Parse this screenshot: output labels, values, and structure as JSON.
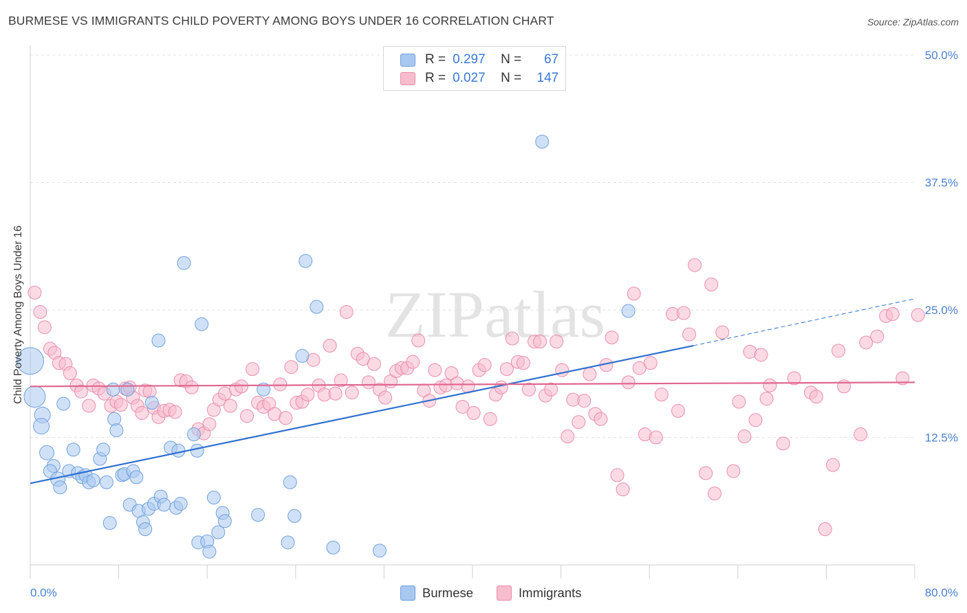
{
  "title": "BURMESE VS IMMIGRANTS CHILD POVERTY AMONG BOYS UNDER 16 CORRELATION CHART",
  "source": "Source: ZipAtlas.com",
  "watermark": "ZIPatlas",
  "legend": {
    "r_label": "R =",
    "n_label": "N =",
    "rows": [
      {
        "name": "Burmese",
        "r": "0.297",
        "n": "67",
        "color": "#a9c8f0",
        "edge": "#6fa0de"
      },
      {
        "name": "Immigrants",
        "r": "0.027",
        "n": "147",
        "color": "#f7bccd",
        "edge": "#ea8eab"
      }
    ]
  },
  "chart_data": {
    "type": "scatter",
    "title": "BURMESE VS IMMIGRANTS CHILD POVERTY AMONG BOYS UNDER 16 CORRELATION CHART",
    "xlabel": "",
    "ylabel": "Child Poverty Among Boys Under 16",
    "xlim": [
      0,
      80
    ],
    "ylim": [
      0,
      50
    ],
    "x_tick_labels": [
      "0.0%",
      "80.0%"
    ],
    "y_ticks": [
      12.5,
      25.0,
      37.5,
      50.0
    ],
    "y_tick_labels": [
      "12.5%",
      "25.0%",
      "37.5%",
      "50.0%"
    ],
    "grid": true,
    "legend_position": "top-center",
    "series": [
      {
        "name": "Burmese",
        "color": "#6fa0de",
        "trend": {
          "x": [
            0,
            60
          ],
          "y": [
            8.0,
            21.5
          ],
          "dashed_to": [
            80,
            26.1
          ],
          "color": "#2e6fd0"
        },
        "points": [
          [
            0,
            20,
            18
          ],
          [
            0.4,
            16.5,
            14
          ],
          [
            1.1,
            14.7,
            10
          ],
          [
            1.0,
            13.6,
            10
          ],
          [
            1.5,
            11.0,
            9
          ],
          [
            2.1,
            9.7,
            8
          ],
          [
            1.8,
            9.2,
            8
          ],
          [
            2.5,
            8.4,
            9
          ],
          [
            2.7,
            7.6,
            8
          ],
          [
            3.0,
            15.8,
            8
          ],
          [
            3.5,
            9.2,
            8
          ],
          [
            3.9,
            11.3,
            8
          ],
          [
            4.3,
            9.0,
            8
          ],
          [
            4.7,
            8.6,
            8
          ],
          [
            5.0,
            8.8,
            8
          ],
          [
            5.3,
            8.1,
            8
          ],
          [
            5.7,
            8.3,
            8
          ],
          [
            6.3,
            10.4,
            8
          ],
          [
            6.6,
            11.3,
            8
          ],
          [
            6.9,
            8.1,
            8
          ],
          [
            7.2,
            4.1,
            8
          ],
          [
            7.5,
            17.2,
            8
          ],
          [
            7.6,
            14.3,
            8
          ],
          [
            7.8,
            13.2,
            8
          ],
          [
            8.3,
            8.8,
            8
          ],
          [
            8.5,
            8.9,
            8
          ],
          [
            8.8,
            17.2,
            8
          ],
          [
            9.0,
            5.9,
            8
          ],
          [
            9.3,
            9.2,
            8
          ],
          [
            9.6,
            8.6,
            8
          ],
          [
            9.8,
            5.3,
            8
          ],
          [
            10.2,
            4.2,
            8
          ],
          [
            10.4,
            3.5,
            8
          ],
          [
            10.7,
            5.5,
            8
          ],
          [
            11.0,
            15.9,
            8
          ],
          [
            11.2,
            6.0,
            8
          ],
          [
            11.6,
            22.0,
            8
          ],
          [
            11.8,
            6.7,
            8
          ],
          [
            12.1,
            5.9,
            8
          ],
          [
            12.7,
            11.5,
            8
          ],
          [
            13.2,
            5.6,
            8
          ],
          [
            13.4,
            11.2,
            8
          ],
          [
            13.6,
            6.0,
            8
          ],
          [
            13.9,
            29.6,
            8
          ],
          [
            14.8,
            12.8,
            8
          ],
          [
            15.1,
            11.2,
            8
          ],
          [
            15.5,
            23.6,
            8
          ],
          [
            15.2,
            2.2,
            8
          ],
          [
            16.0,
            2.3,
            8
          ],
          [
            16.2,
            1.3,
            8
          ],
          [
            16.6,
            6.6,
            8
          ],
          [
            17.0,
            3.2,
            8
          ],
          [
            17.4,
            5.1,
            8
          ],
          [
            17.6,
            4.3,
            8
          ],
          [
            20.6,
            4.9,
            8
          ],
          [
            21.1,
            17.2,
            8
          ],
          [
            23.3,
            2.2,
            8
          ],
          [
            23.5,
            8.1,
            8
          ],
          [
            23.9,
            4.8,
            8
          ],
          [
            24.6,
            20.5,
            8
          ],
          [
            24.9,
            29.8,
            8
          ],
          [
            25.9,
            25.3,
            8
          ],
          [
            27.4,
            1.7,
            8
          ],
          [
            31.6,
            1.4,
            8
          ],
          [
            46.3,
            41.5,
            8
          ],
          [
            54.1,
            24.9,
            8
          ]
        ]
      },
      {
        "name": "Immigrants",
        "color": "#ea8eab",
        "trend": {
          "x": [
            0,
            80
          ],
          "y": [
            17.5,
            17.9
          ],
          "color": "#e0668e"
        },
        "points": [
          [
            0.4,
            26.7,
            8
          ],
          [
            0.9,
            24.8,
            8
          ],
          [
            1.3,
            23.3,
            8
          ],
          [
            1.8,
            21.2,
            8
          ],
          [
            2.2,
            20.8,
            8
          ],
          [
            2.6,
            19.8,
            8
          ],
          [
            3.2,
            19.7,
            8
          ],
          [
            3.6,
            18.8,
            8
          ],
          [
            4.2,
            17.6,
            8
          ],
          [
            4.6,
            17.0,
            8
          ],
          [
            5.3,
            15.6,
            8
          ],
          [
            5.7,
            17.6,
            8
          ],
          [
            6.2,
            17.3,
            8
          ],
          [
            6.7,
            16.8,
            8
          ],
          [
            7.3,
            15.6,
            8
          ],
          [
            7.8,
            16.0,
            8
          ],
          [
            8.2,
            15.7,
            8
          ],
          [
            8.6,
            17.3,
            8
          ],
          [
            9.0,
            17.4,
            8
          ],
          [
            9.3,
            16.4,
            8
          ],
          [
            9.7,
            15.6,
            8
          ],
          [
            10.1,
            14.9,
            8
          ],
          [
            10.4,
            17.1,
            8
          ],
          [
            10.8,
            17.0,
            8
          ],
          [
            11.2,
            15.4,
            8
          ],
          [
            11.6,
            14.5,
            8
          ],
          [
            12.1,
            15.1,
            8
          ],
          [
            12.6,
            15.2,
            8
          ],
          [
            13.1,
            15.0,
            8
          ],
          [
            13.6,
            18.1,
            8
          ],
          [
            14.1,
            18.0,
            8
          ],
          [
            14.6,
            17.4,
            8
          ],
          [
            15.2,
            13.3,
            8
          ],
          [
            15.7,
            12.9,
            8
          ],
          [
            16.2,
            13.8,
            8
          ],
          [
            16.6,
            15.2,
            8
          ],
          [
            17.1,
            16.2,
            8
          ],
          [
            17.6,
            16.8,
            8
          ],
          [
            18.1,
            15.6,
            8
          ],
          [
            18.6,
            17.2,
            8
          ],
          [
            19.1,
            17.5,
            8
          ],
          [
            19.6,
            14.6,
            8
          ],
          [
            20.1,
            19.2,
            8
          ],
          [
            20.6,
            15.9,
            8
          ],
          [
            21.1,
            15.5,
            8
          ],
          [
            21.6,
            15.8,
            8
          ],
          [
            22.1,
            14.8,
            8
          ],
          [
            22.6,
            17.7,
            8
          ],
          [
            23.1,
            14.4,
            8
          ],
          [
            23.6,
            19.4,
            8
          ],
          [
            24.1,
            15.9,
            8
          ],
          [
            24.6,
            16.0,
            8
          ],
          [
            25.1,
            16.7,
            8
          ],
          [
            25.6,
            20.1,
            8
          ],
          [
            26.1,
            17.6,
            8
          ],
          [
            26.6,
            16.7,
            8
          ],
          [
            27.1,
            21.5,
            8
          ],
          [
            27.6,
            16.8,
            8
          ],
          [
            28.1,
            18.1,
            8
          ],
          [
            28.6,
            24.8,
            8
          ],
          [
            29.1,
            16.9,
            8
          ],
          [
            29.6,
            20.7,
            8
          ],
          [
            30.1,
            20.2,
            8
          ],
          [
            30.6,
            17.9,
            8
          ],
          [
            31.1,
            19.7,
            8
          ],
          [
            31.6,
            17.2,
            8
          ],
          [
            32.1,
            16.4,
            8
          ],
          [
            32.6,
            18.0,
            8
          ],
          [
            33.1,
            19.0,
            8
          ],
          [
            33.6,
            19.3,
            8
          ],
          [
            34.1,
            19.3,
            8
          ],
          [
            34.6,
            19.9,
            8
          ],
          [
            35.1,
            22.0,
            8
          ],
          [
            35.6,
            17.1,
            8
          ],
          [
            36.1,
            16.1,
            8
          ],
          [
            36.6,
            19.1,
            8
          ],
          [
            37.1,
            17.4,
            8
          ],
          [
            37.6,
            17.6,
            8
          ],
          [
            38.1,
            18.8,
            8
          ],
          [
            38.6,
            17.8,
            8
          ],
          [
            39.1,
            15.5,
            8
          ],
          [
            39.6,
            17.5,
            8
          ],
          [
            40.1,
            14.9,
            8
          ],
          [
            40.6,
            19.1,
            8
          ],
          [
            41.1,
            19.6,
            8
          ],
          [
            41.6,
            14.3,
            8
          ],
          [
            42.1,
            16.7,
            8
          ],
          [
            42.6,
            17.4,
            8
          ],
          [
            43.1,
            19.2,
            8
          ],
          [
            43.6,
            22.2,
            8
          ],
          [
            44.1,
            19.9,
            8
          ],
          [
            44.6,
            19.8,
            8
          ],
          [
            45.1,
            17.2,
            8
          ],
          [
            45.6,
            21.9,
            8
          ],
          [
            46.1,
            21.9,
            8
          ],
          [
            46.6,
            16.6,
            8
          ],
          [
            47.1,
            17.2,
            8
          ],
          [
            47.6,
            21.9,
            8
          ],
          [
            48.1,
            19.1,
            8
          ],
          [
            48.6,
            12.6,
            8
          ],
          [
            49.1,
            16.2,
            8
          ],
          [
            49.6,
            14.0,
            8
          ],
          [
            50.1,
            16.1,
            8
          ],
          [
            50.6,
            18.7,
            8
          ],
          [
            51.1,
            14.8,
            8
          ],
          [
            51.6,
            14.3,
            8
          ],
          [
            52.1,
            19.6,
            8
          ],
          [
            52.6,
            22.3,
            8
          ],
          [
            53.1,
            8.8,
            8
          ],
          [
            53.6,
            7.4,
            8
          ],
          [
            54.1,
            17.9,
            8
          ],
          [
            54.6,
            26.6,
            8
          ],
          [
            55.1,
            19.3,
            8
          ],
          [
            55.6,
            12.8,
            8
          ],
          [
            56.1,
            19.8,
            8
          ],
          [
            56.6,
            12.5,
            8
          ],
          [
            57.1,
            16.7,
            8
          ],
          [
            58.1,
            24.6,
            8
          ],
          [
            58.6,
            15.1,
            8
          ],
          [
            59.1,
            24.7,
            8
          ],
          [
            59.6,
            22.6,
            8
          ],
          [
            60.1,
            29.4,
            8
          ],
          [
            61.1,
            9.0,
            8
          ],
          [
            61.6,
            27.5,
            8
          ],
          [
            61.9,
            7.0,
            8
          ],
          [
            62.6,
            22.8,
            8
          ],
          [
            63.6,
            9.2,
            8
          ],
          [
            64.1,
            16.0,
            8
          ],
          [
            64.6,
            12.6,
            8
          ],
          [
            65.1,
            20.9,
            8
          ],
          [
            65.6,
            14.2,
            8
          ],
          [
            66.1,
            20.6,
            8
          ],
          [
            66.6,
            16.3,
            8
          ],
          [
            66.9,
            17.6,
            8
          ],
          [
            68.1,
            11.9,
            8
          ],
          [
            69.1,
            18.3,
            8
          ],
          [
            70.6,
            16.9,
            8
          ],
          [
            71.1,
            16.5,
            8
          ],
          [
            71.9,
            3.5,
            8
          ],
          [
            72.6,
            9.8,
            8
          ],
          [
            73.1,
            21.0,
            8
          ],
          [
            73.6,
            17.5,
            8
          ],
          [
            75.1,
            12.8,
            8
          ],
          [
            75.6,
            21.8,
            8
          ],
          [
            76.6,
            22.4,
            8
          ],
          [
            77.4,
            24.4,
            8
          ],
          [
            78.0,
            24.6,
            8
          ],
          [
            78.9,
            18.3,
            8
          ],
          [
            80.3,
            24.5,
            8
          ]
        ]
      }
    ]
  }
}
